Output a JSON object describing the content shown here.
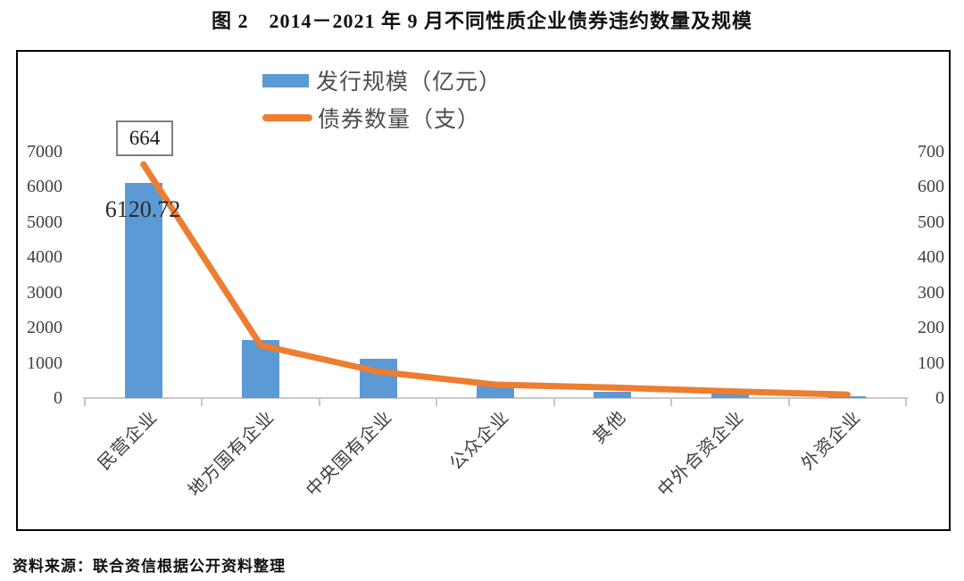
{
  "page": {
    "title": "图 2　2014－2021 年 9 月不同性质企业债券违约数量及规模",
    "source": "资料来源：联合资信根据公开资料整理"
  },
  "legend": {
    "bar_label": "发行规模（亿元）",
    "line_label": "债券数量（支）"
  },
  "annotations": {
    "line_first_value": "664",
    "bar_first_value": "6120.72"
  },
  "colors": {
    "bar": "#5B9AD5",
    "line": "#ED7D31",
    "axis_text": "#404040",
    "axis_line": "#C9C9C9",
    "box_border": "#000000"
  },
  "chart_data": {
    "type": "bar",
    "title": "图 2　2014－2021 年 9 月不同性质企业债券违约数量及规模",
    "categories": [
      "民营企业",
      "地方国有企业",
      "中央国有企业",
      "公众企业",
      "其他",
      "中外合资企业",
      "外资企业"
    ],
    "series": [
      {
        "name": "发行规模（亿元）",
        "type": "bar",
        "axis": "left",
        "color": "#5B9AD5",
        "values": [
          6120.72,
          1640,
          1120,
          380,
          185,
          120,
          60
        ]
      },
      {
        "name": "债券数量（支）",
        "type": "line",
        "axis": "right",
        "color": "#ED7D31",
        "values": [
          664,
          150,
          75,
          38,
          30,
          19,
          10
        ]
      }
    ],
    "left_axis": {
      "min": 0,
      "max": 7000,
      "step": 1000,
      "ticks": [
        0,
        1000,
        2000,
        3000,
        4000,
        5000,
        6000,
        7000
      ]
    },
    "right_axis": {
      "min": 0,
      "max": 700,
      "step": 100,
      "ticks": [
        0,
        100,
        200,
        300,
        400,
        500,
        600,
        700
      ]
    },
    "grid": false,
    "legend_position": "top-center",
    "x_label_rotation_deg": 45,
    "data_labels": [
      {
        "series": "债券数量（支）",
        "category": "民营企业",
        "text": "664",
        "boxed": true
      },
      {
        "series": "发行规模（亿元）",
        "category": "民营企业",
        "text": "6120.72",
        "boxed": false
      }
    ]
  }
}
